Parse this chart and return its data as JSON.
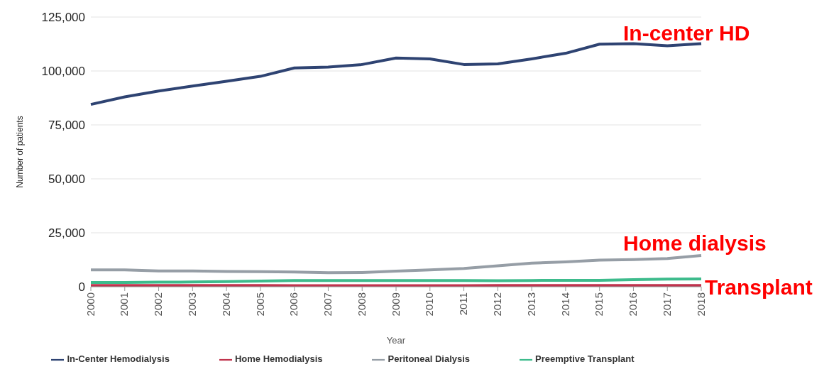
{
  "chart_data": {
    "type": "line",
    "xlabel": "Year",
    "ylabel": "Number of patients",
    "categories": [
      "2000",
      "2001",
      "2002",
      "2003",
      "2004",
      "2005",
      "2006",
      "2007",
      "2008",
      "2009",
      "2010",
      "2011",
      "2012",
      "2013",
      "2014",
      "2015",
      "2016",
      "2017",
      "2018"
    ],
    "series": [
      {
        "name": "In-Center Hemodialysis",
        "color": "#2e4372",
        "values": [
          84500,
          88000,
          90700,
          93000,
          95200,
          97500,
          101400,
          101800,
          103000,
          106000,
          105600,
          103000,
          103300,
          105600,
          108200,
          112400,
          112700,
          111700,
          112700
        ]
      },
      {
        "name": "Home Hemodialysis",
        "color": "#c0334d",
        "values": [
          600,
          600,
          600,
          600,
          600,
          600,
          500,
          500,
          500,
          500,
          500,
          500,
          600,
          600,
          600,
          600,
          600,
          600,
          600
        ]
      },
      {
        "name": "Peritoneal Dialysis",
        "color": "#969ea6",
        "values": [
          7800,
          7800,
          7300,
          7300,
          7100,
          7000,
          6800,
          6500,
          6600,
          7200,
          7800,
          8500,
          9700,
          10900,
          11500,
          12300,
          12600,
          13100,
          14500
        ]
      },
      {
        "name": "Preemptive Transplant",
        "color": "#3dbb8c",
        "values": [
          2000,
          2000,
          2100,
          2200,
          2400,
          2600,
          2900,
          2900,
          2900,
          2900,
          2900,
          2900,
          2800,
          2900,
          3000,
          3000,
          3300,
          3500,
          3600
        ]
      }
    ],
    "ylim": [
      0,
      125000
    ],
    "yticks": [
      0,
      {
        "value": 25000,
        "label": "25,000"
      },
      {
        "value": 50000,
        "label": "50,000"
      },
      {
        "value": 75000,
        "label": "75,000"
      },
      {
        "value": 100000,
        "label": "100,000"
      },
      {
        "value": 125000,
        "label": "125,000"
      }
    ],
    "grid": "y",
    "legend": "bottom",
    "marker": "none",
    "line_style": "solid",
    "annotations": [
      "In-center HD",
      "Home dialysis",
      "Transplant"
    ]
  }
}
